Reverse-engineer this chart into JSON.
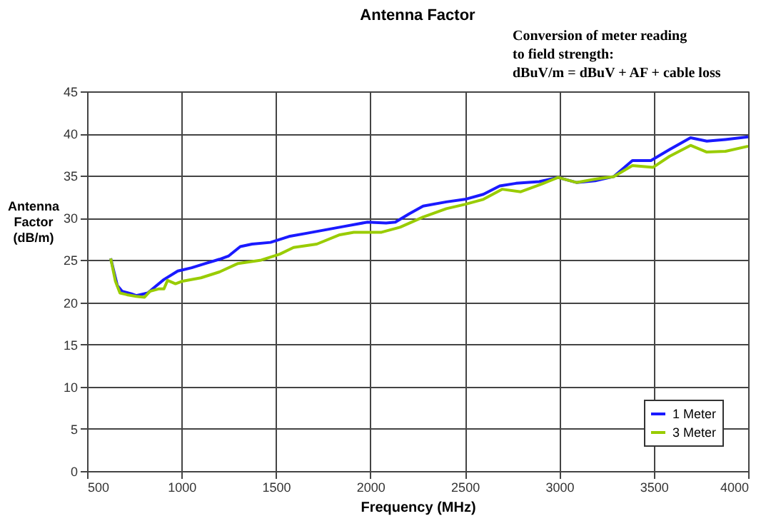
{
  "chart_data": {
    "type": "line",
    "title": "Antenna Factor",
    "xlabel": "Frequency (MHz)",
    "ylabel": "Antenna\nFactor\n(dB/m)",
    "annotations": [
      "Conversion of meter reading\nto field strength:\ndBuV/m = dBuV + AF + cable loss"
    ],
    "xlim": [
      500,
      4000
    ],
    "xticks": [
      500,
      1000,
      1500,
      2000,
      2500,
      3000,
      3500,
      4000
    ],
    "ylim": [
      0,
      45
    ],
    "yticks": [
      0,
      5,
      10,
      15,
      20,
      25,
      30,
      35,
      40,
      45
    ],
    "grid": true,
    "legend": "bottom right",
    "line_style": "solid",
    "marker": "none",
    "series": [
      {
        "name": "1 Meter",
        "color": "#1a1aff",
        "x": [
          625,
          660,
          686,
          735,
          760,
          821,
          858,
          907,
          980,
          1054,
          1127,
          1201,
          1250,
          1311,
          1373,
          1471,
          1569,
          1667,
          1765,
          1863,
          1985,
          2083,
          2132,
          2206,
          2279,
          2402,
          2500,
          2598,
          2685,
          2771,
          2894,
          2993,
          3091,
          3190,
          3288,
          3387,
          3485,
          3584,
          3695,
          3781,
          3880,
          4000
        ],
        "values": [
          25.2,
          22,
          21.3,
          21,
          20.8,
          21.1,
          21.8,
          22.7,
          23.7,
          24.1,
          24.6,
          25.1,
          25.5,
          26.6,
          26.9,
          27.1,
          27.8,
          28.2,
          28.6,
          29,
          29.5,
          29.4,
          29.5,
          30.5,
          31.4,
          31.9,
          32.2,
          32.8,
          33.8,
          34.1,
          34.3,
          34.8,
          34.2,
          34.4,
          34.9,
          36.8,
          36.8,
          38.1,
          39.5,
          39.1,
          39.3,
          39.6
        ]
      },
      {
        "name": "3 Meter",
        "color": "#99cc00",
        "x": [
          625,
          650,
          674,
          711,
          760,
          804,
          833,
          882,
          907,
          926,
          968,
          1005,
          1103,
          1201,
          1299,
          1422,
          1520,
          1593,
          1716,
          1838,
          1912,
          2059,
          2157,
          2279,
          2402,
          2500,
          2598,
          2697,
          2796,
          2894,
          2993,
          3091,
          3190,
          3288,
          3387,
          3497,
          3584,
          3695,
          3781,
          3880,
          4000
        ],
        "values": [
          25.2,
          22.5,
          21.1,
          20.9,
          20.7,
          20.6,
          21.3,
          21.6,
          21.6,
          22.6,
          22.2,
          22.5,
          22.9,
          23.6,
          24.6,
          25,
          25.7,
          26.5,
          26.9,
          28,
          28.3,
          28.3,
          28.9,
          30.1,
          31.1,
          31.6,
          32.2,
          33.4,
          33.1,
          33.9,
          34.8,
          34.2,
          34.6,
          34.9,
          36.2,
          36,
          37.3,
          38.6,
          37.8,
          37.9,
          38.5
        ]
      }
    ]
  }
}
